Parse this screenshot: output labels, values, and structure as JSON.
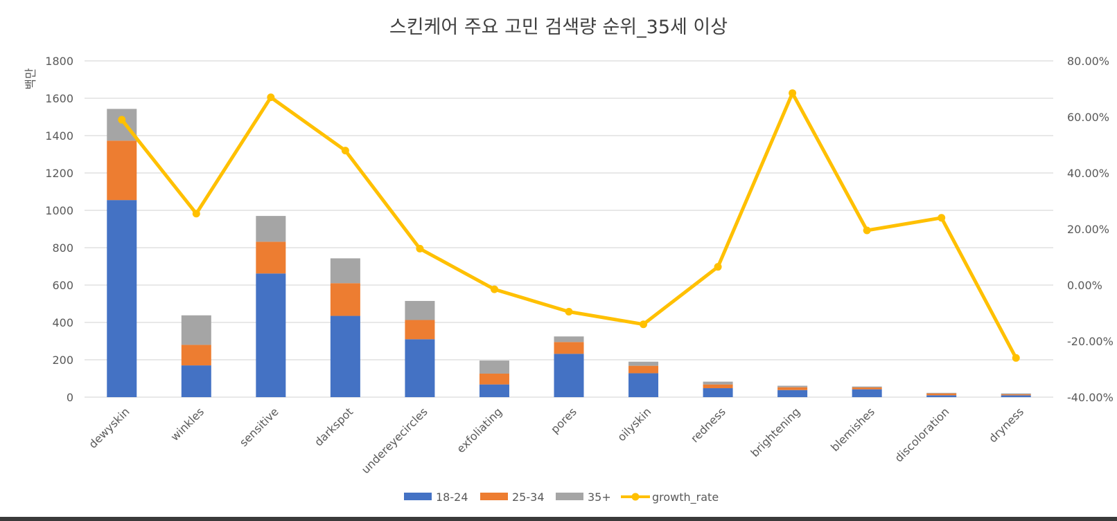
{
  "chart_data": {
    "type": "bar",
    "stacked": true,
    "title": "스킨케어 주요 고민 검색량 순위_35세 이상",
    "ylabel": "백만",
    "ylim": [
      0,
      1800
    ],
    "yticks": [
      0,
      200,
      400,
      600,
      800,
      1000,
      1200,
      1400,
      1600,
      1800
    ],
    "y2lim": [
      -0.4,
      0.8
    ],
    "y2ticks": [
      -0.4,
      -0.2,
      0.0,
      0.2,
      0.4,
      0.6,
      0.8
    ],
    "y2tick_labels": [
      "-40.00%",
      "-20.00%",
      "0.00%",
      "20.00%",
      "40.00%",
      "60.00%",
      "80.00%"
    ],
    "categories": [
      "dewyskin",
      "winkles",
      "sensitive",
      "darkspot",
      "undereyecircles",
      "exfoliating",
      "pores",
      "oilyskin",
      "redness",
      "brightening",
      "blemishes",
      "discoloration",
      "dryness"
    ],
    "series": [
      {
        "name": "18-24",
        "color": "#4472c4",
        "values": [
          1055,
          170,
          662,
          435,
          310,
          68,
          232,
          128,
          48,
          38,
          42,
          10,
          10
        ]
      },
      {
        "name": "25-34",
        "color": "#ed7d31",
        "values": [
          318,
          110,
          170,
          175,
          103,
          58,
          63,
          40,
          20,
          15,
          10,
          10,
          5
        ]
      },
      {
        "name": "35+",
        "color": "#a5a5a5",
        "values": [
          170,
          158,
          138,
          133,
          102,
          70,
          30,
          22,
          15,
          8,
          5,
          3,
          5
        ]
      }
    ],
    "line_series": {
      "name": "growth_rate",
      "color": "#ffc000",
      "axis": "right",
      "values": [
        0.59,
        0.255,
        0.67,
        0.48,
        0.13,
        -0.015,
        -0.095,
        -0.14,
        0.065,
        0.685,
        0.195,
        0.24,
        -0.26
      ]
    },
    "grid": true,
    "legend": "bottom"
  }
}
